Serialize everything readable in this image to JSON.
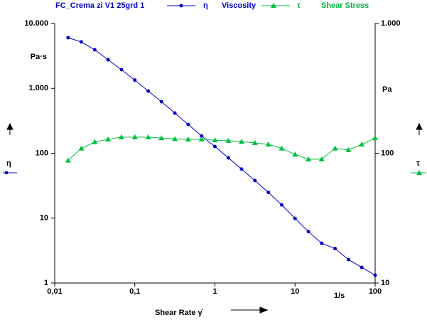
{
  "chart_data": {
    "type": "line",
    "title": "FC_Crema zi V1 25grd 1",
    "x": [
      0.0147,
      0.0215,
      0.0316,
      0.0464,
      0.0681,
      0.1,
      0.147,
      0.215,
      0.316,
      0.464,
      0.681,
      1,
      1.47,
      2.15,
      3.16,
      4.64,
      6.81,
      10,
      14.7,
      21.5,
      31.6,
      46.4,
      68.1,
      100
    ],
    "series": [
      {
        "name": "Viscosity",
        "symbol": "η",
        "color": "#0000c0",
        "marker": "circle",
        "values": [
          6040,
          5190,
          3930,
          2760,
          1940,
          1340,
          910,
          623,
          416,
          278,
          185,
          127,
          85,
          57,
          38,
          25,
          16,
          9.9,
          6.2,
          4.1,
          3.4,
          2.3,
          1.74,
          1.32
        ]
      },
      {
        "name": "Shear Stress",
        "symbol": "τ",
        "color": "#00c040",
        "marker": "triangle",
        "axis": "y2",
        "values": [
          88,
          109,
          122,
          128,
          133,
          133,
          133,
          131,
          129,
          128,
          128,
          126,
          125,
          123,
          120,
          117,
          109,
          98,
          90,
          90,
          109,
          106,
          117,
          131
        ]
      }
    ],
    "xlabel": "Shear Rate γ̇",
    "xunit": "1/s",
    "ylabel": "η",
    "yunit": "Pa·s",
    "y2label": "τ",
    "y2unit": "Pa",
    "xscale": "log",
    "yscale": "log",
    "y2scale": "log",
    "xlim": [
      0.01,
      100
    ],
    "xticks": [
      {
        "value": 0.01,
        "label": "0,01"
      },
      {
        "value": 0.1,
        "label": "0,1"
      },
      1,
      10,
      100
    ],
    "ylim": [
      1,
      10000
    ],
    "yticks": [
      1,
      10,
      100,
      {
        "value": 1000,
        "label": "1.000"
      },
      {
        "value": 10000,
        "label": "10.000"
      }
    ],
    "y2lim": [
      10,
      1000
    ],
    "y2ticks": [
      10,
      100,
      {
        "value": 1000,
        "label": "1.000"
      }
    ]
  }
}
